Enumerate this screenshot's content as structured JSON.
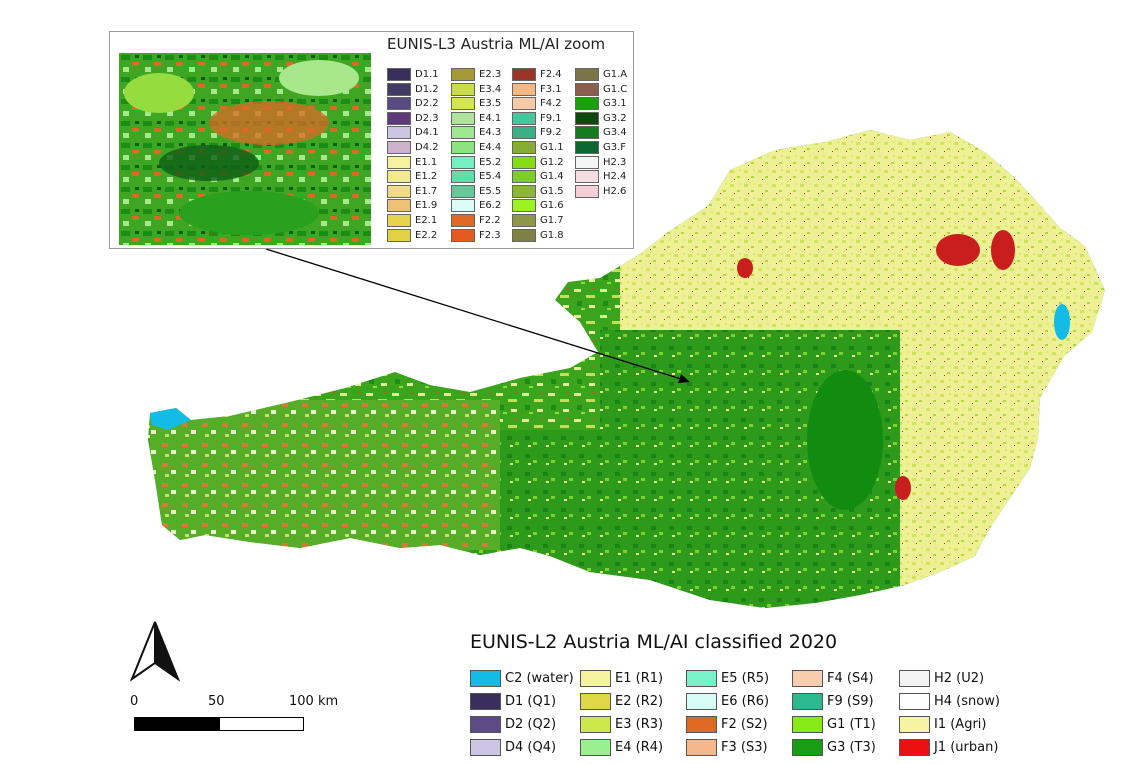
{
  "inset": {
    "title": "EUNIS-L3 Austria ML/AI zoom",
    "columns": [
      [
        {
          "code": "D1.1",
          "color": "#3a2e5c"
        },
        {
          "code": "D1.2",
          "color": "#423c64"
        },
        {
          "code": "D2.2",
          "color": "#5a4a84"
        },
        {
          "code": "D2.3",
          "color": "#5d3a7a"
        },
        {
          "code": "D4.1",
          "color": "#cdc6e2"
        },
        {
          "code": "D4.2",
          "color": "#cdb3cc"
        },
        {
          "code": "E1.1",
          "color": "#f6f2a0"
        },
        {
          "code": "E1.2",
          "color": "#f2ea90"
        },
        {
          "code": "E1.7",
          "color": "#f0dc86"
        },
        {
          "code": "E1.9",
          "color": "#efc176"
        },
        {
          "code": "E2.1",
          "color": "#e6d44e"
        },
        {
          "code": "E2.2",
          "color": "#e0d244"
        }
      ],
      [
        {
          "code": "E2.3",
          "color": "#a69a38"
        },
        {
          "code": "E3.4",
          "color": "#cbdc4a"
        },
        {
          "code": "E3.5",
          "color": "#d5e655"
        },
        {
          "code": "E4.1",
          "color": "#aee59a"
        },
        {
          "code": "E4.3",
          "color": "#9ee88f"
        },
        {
          "code": "E4.4",
          "color": "#8fe37e"
        },
        {
          "code": "E5.2",
          "color": "#73f0c4"
        },
        {
          "code": "E5.4",
          "color": "#63dda7"
        },
        {
          "code": "E5.5",
          "color": "#66c89a"
        },
        {
          "code": "E6.2",
          "color": "#dcfcf7"
        },
        {
          "code": "F2.2",
          "color": "#df6a26"
        },
        {
          "code": "F2.3",
          "color": "#e35b20"
        }
      ],
      [
        {
          "code": "F2.4",
          "color": "#9a3328"
        },
        {
          "code": "F3.1",
          "color": "#f5b884"
        },
        {
          "code": "F4.2",
          "color": "#f6caa6"
        },
        {
          "code": "F9.1",
          "color": "#45c79e"
        },
        {
          "code": "F9.2",
          "color": "#3ab088"
        },
        {
          "code": "G1.1",
          "color": "#86ac34"
        },
        {
          "code": "G1.2",
          "color": "#86dc16"
        },
        {
          "code": "G1.4",
          "color": "#7ccd24"
        },
        {
          "code": "G1.5",
          "color": "#8bb63a"
        },
        {
          "code": "G1.6",
          "color": "#9cf222"
        },
        {
          "code": "G1.7",
          "color": "#8f9648"
        },
        {
          "code": "G1.8",
          "color": "#7e8046"
        }
      ],
      [
        {
          "code": "G1.A",
          "color": "#7a7448"
        },
        {
          "code": "G1.C",
          "color": "#8c5c4e"
        },
        {
          "code": "G3.1",
          "color": "#1c9e10"
        },
        {
          "code": "G3.2",
          "color": "#0b4a0c"
        },
        {
          "code": "G3.4",
          "color": "#137a1e"
        },
        {
          "code": "G3.F",
          "color": "#0d6630"
        },
        {
          "code": "H2.3",
          "color": "#f5f5f5"
        },
        {
          "code": "H2.4",
          "color": "#f3dde3"
        },
        {
          "code": "H2.6",
          "color": "#f4cfd7"
        }
      ]
    ]
  },
  "legend": {
    "title": "EUNIS-L2 Austria ML/AI classified 2020",
    "columns": [
      [
        {
          "label": "C2 (water)",
          "color": "#12bce6"
        },
        {
          "label": "D1 (Q1)",
          "color": "#3a2e5c"
        },
        {
          "label": "D2 (Q2)",
          "color": "#5d4b86"
        },
        {
          "label": "D4 (Q4)",
          "color": "#cdc6e2"
        }
      ],
      [
        {
          "label": "E1 (R1)",
          "color": "#f5f2a0"
        },
        {
          "label": "E2 (R2)",
          "color": "#e0d748"
        },
        {
          "label": "E3 (R3)",
          "color": "#cde84a"
        },
        {
          "label": "E4 (R4)",
          "color": "#9af08e"
        }
      ],
      [
        {
          "label": "E5 (R5)",
          "color": "#76f3c8"
        },
        {
          "label": "E6 (R6)",
          "color": "#d6fcf6"
        },
        {
          "label": "F2 (S2)",
          "color": "#e06a22"
        },
        {
          "label": "F3 (S3)",
          "color": "#f5b88a"
        }
      ],
      [
        {
          "label": "F4 (S4)",
          "color": "#f7cdb0"
        },
        {
          "label": "F9 (S9)",
          "color": "#2eb890"
        },
        {
          "label": "G1 (T1)",
          "color": "#88ea16"
        },
        {
          "label": "G3 (T3)",
          "color": "#1a9c14"
        }
      ],
      [
        {
          "label": "H2 (U2)",
          "color": "#f3f3f3"
        },
        {
          "label": "H4 (snow)",
          "color": "#ffffff"
        },
        {
          "label": "I1 (Agri)",
          "color": "#f7f3a4"
        },
        {
          "label": "J1 (urban)",
          "color": "#ec1010"
        }
      ]
    ]
  },
  "scalebar": {
    "ticks": [
      "0",
      "50",
      "100 km"
    ]
  }
}
